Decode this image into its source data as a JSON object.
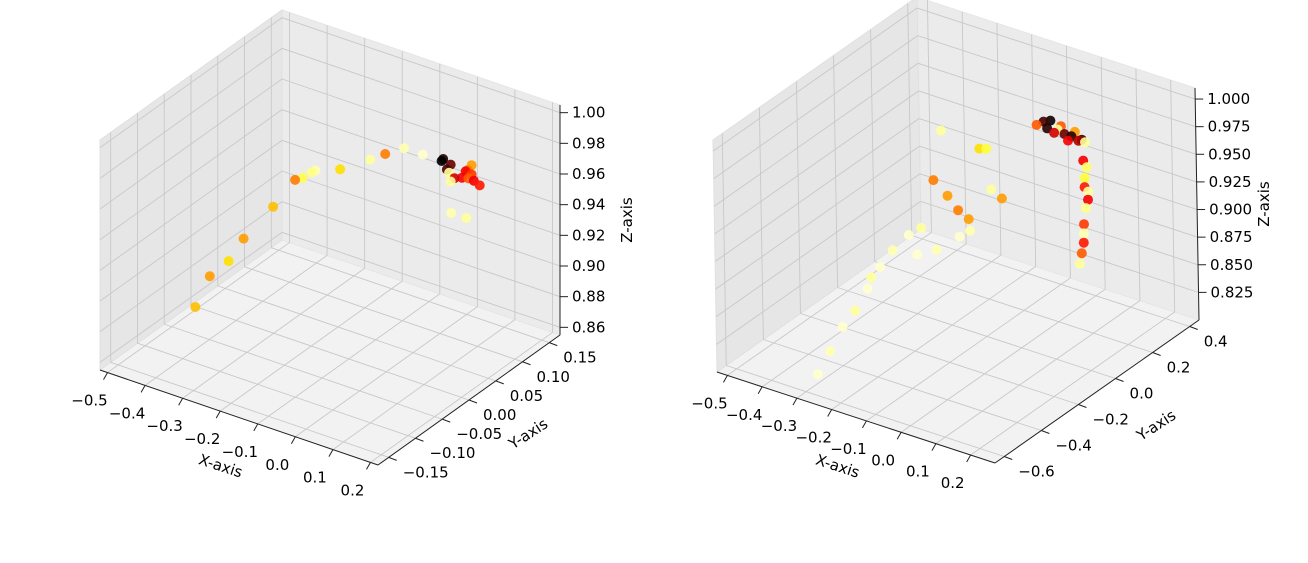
{
  "figure": {
    "background": "#ffffff",
    "pane_color": "#f2f2f2",
    "grid_color": "#b0b0b0"
  },
  "chart_data": [
    {
      "type": "scatter3d",
      "title": "",
      "xlabel": "X-axis",
      "ylabel": "Y-axis",
      "zlabel": "Z-axis",
      "xlim": [
        -0.52,
        0.22
      ],
      "ylim": [
        -0.17,
        0.17
      ],
      "zlim": [
        0.855,
        1.005
      ],
      "xticks": [
        -0.5,
        -0.4,
        -0.3,
        -0.2,
        -0.1,
        0.0,
        0.1,
        0.2
      ],
      "xtick_labels": [
        "−0.5",
        "−0.4",
        "−0.3",
        "−0.2",
        "−0.1",
        "0.0",
        "0.1",
        "0.2"
      ],
      "yticks": [
        -0.15,
        -0.1,
        -0.05,
        0.0,
        0.05,
        0.1,
        0.15
      ],
      "ytick_labels": [
        "−0.15",
        "−0.10",
        "−0.05",
        "0.00",
        "0.05",
        "0.10",
        "0.15"
      ],
      "zticks": [
        0.86,
        0.88,
        0.9,
        0.92,
        0.94,
        0.96,
        0.98,
        1.0
      ],
      "ztick_labels": [
        "0.86",
        "0.88",
        "0.90",
        "0.92",
        "0.94",
        "0.96",
        "0.98",
        "1.00"
      ],
      "grid": true,
      "colormap": "hot",
      "points": [
        {
          "x": -0.48,
          "y": -0.02,
          "z": 0.862,
          "c": 0.65
        },
        {
          "x": -0.47,
          "y": 0.0,
          "z": 0.878,
          "c": 0.6
        },
        {
          "x": -0.42,
          "y": 0.0,
          "z": 0.892,
          "c": 0.7
        },
        {
          "x": -0.38,
          "y": 0.0,
          "z": 0.91,
          "c": 0.6
        },
        {
          "x": -0.33,
          "y": 0.02,
          "z": 0.93,
          "c": 0.65
        },
        {
          "x": -0.3,
          "y": 0.04,
          "z": 0.945,
          "c": 0.55
        },
        {
          "x": -0.28,
          "y": 0.04,
          "z": 0.948,
          "c": 0.82
        },
        {
          "x": -0.27,
          "y": 0.05,
          "z": 0.95,
          "c": 0.88
        },
        {
          "x": -0.26,
          "y": 0.05,
          "z": 0.952,
          "c": 0.92
        },
        {
          "x": -0.18,
          "y": 0.04,
          "z": 0.962,
          "c": 0.7
        },
        {
          "x": -0.1,
          "y": 0.04,
          "z": 0.975,
          "c": 0.9
        },
        {
          "x": -0.06,
          "y": 0.04,
          "z": 0.982,
          "c": 0.55
        },
        {
          "x": -0.01,
          "y": 0.04,
          "z": 0.99,
          "c": 0.92
        },
        {
          "x": 0.04,
          "y": 0.04,
          "z": 0.99,
          "c": 0.95
        },
        {
          "x": 0.08,
          "y": 0.05,
          "z": 0.988,
          "c": 0.05
        },
        {
          "x": 0.09,
          "y": 0.05,
          "z": 0.982,
          "c": 0.1
        },
        {
          "x": 0.09,
          "y": 0.04,
          "z": 0.99,
          "c": 0.0
        },
        {
          "x": 0.1,
          "y": 0.05,
          "z": 0.986,
          "c": 0.15
        },
        {
          "x": 0.11,
          "y": 0.04,
          "z": 0.984,
          "c": 0.9
        },
        {
          "x": 0.1,
          "y": 0.05,
          "z": 0.975,
          "c": 0.9
        },
        {
          "x": 0.11,
          "y": 0.05,
          "z": 0.978,
          "c": 0.3
        },
        {
          "x": 0.13,
          "y": 0.05,
          "z": 0.98,
          "c": 0.35
        },
        {
          "x": 0.14,
          "y": 0.05,
          "z": 0.985,
          "c": 0.35
        },
        {
          "x": 0.16,
          "y": 0.04,
          "z": 0.99,
          "c": 0.55
        },
        {
          "x": 0.17,
          "y": 0.04,
          "z": 0.994,
          "c": 0.6
        },
        {
          "x": 0.17,
          "y": 0.04,
          "z": 0.988,
          "c": 0.45
        },
        {
          "x": 0.19,
          "y": 0.03,
          "z": 0.988,
          "c": 0.35
        },
        {
          "x": 0.19,
          "y": 0.02,
          "z": 0.992,
          "c": 0.5
        },
        {
          "x": 0.22,
          "y": 0.02,
          "z": 0.99,
          "c": 0.4
        },
        {
          "x": 0.13,
          "y": 0.03,
          "z": 0.962,
          "c": 0.92
        },
        {
          "x": 0.17,
          "y": 0.03,
          "z": 0.962,
          "c": 0.9
        }
      ]
    },
    {
      "type": "scatter3d",
      "title": "",
      "xlabel": "X-axis",
      "ylabel": "Y-axis",
      "zlabel": "Z-axis",
      "xlim": [
        -0.53,
        0.27
      ],
      "ylim": [
        -0.65,
        0.45
      ],
      "zlim": [
        0.8,
        1.01
      ],
      "xticks": [
        -0.5,
        -0.4,
        -0.3,
        -0.2,
        -0.1,
        0.0,
        0.1,
        0.2
      ],
      "xtick_labels": [
        "−0.5",
        "−0.4",
        "−0.3",
        "−0.2",
        "−0.1",
        "0.0",
        "0.1",
        "0.2"
      ],
      "yticks": [
        -0.6,
        -0.4,
        -0.2,
        0.0,
        0.2,
        0.4
      ],
      "ytick_labels": [
        "−0.6",
        "−0.4",
        "−0.2",
        "0.0",
        "0.2",
        "0.4"
      ],
      "zticks": [
        0.825,
        0.85,
        0.875,
        0.9,
        0.925,
        0.95,
        0.975,
        1.0
      ],
      "ztick_labels": [
        "0.825",
        "0.850",
        "0.875",
        "0.900",
        "0.925",
        "0.950",
        "0.975",
        "1.000"
      ],
      "grid": true,
      "colormap": "hot",
      "points": [
        {
          "x": -0.32,
          "y": -0.5,
          "z": 0.802,
          "c": 0.95
        },
        {
          "x": -0.31,
          "y": -0.45,
          "z": 0.818,
          "c": 0.92
        },
        {
          "x": -0.3,
          "y": -0.4,
          "z": 0.835,
          "c": 0.95
        },
        {
          "x": -0.29,
          "y": -0.35,
          "z": 0.845,
          "c": 0.9
        },
        {
          "x": -0.28,
          "y": -0.3,
          "z": 0.86,
          "c": 0.95
        },
        {
          "x": -0.28,
          "y": -0.28,
          "z": 0.868,
          "c": 0.9
        },
        {
          "x": -0.27,
          "y": -0.25,
          "z": 0.875,
          "c": 0.95
        },
        {
          "x": -0.26,
          "y": -0.2,
          "z": 0.885,
          "c": 0.92
        },
        {
          "x": -0.24,
          "y": -0.15,
          "z": 0.895,
          "c": 0.95
        },
        {
          "x": -0.22,
          "y": -0.12,
          "z": 0.9,
          "c": 0.9
        },
        {
          "x": -0.2,
          "y": -0.18,
          "z": 0.885,
          "c": 0.95
        },
        {
          "x": -0.16,
          "y": -0.15,
          "z": 0.89,
          "c": 0.92
        },
        {
          "x": -0.12,
          "y": -0.1,
          "z": 0.9,
          "c": 0.95
        },
        {
          "x": -0.22,
          "y": -0.05,
          "z": 0.935,
          "c": 0.55
        },
        {
          "x": -0.18,
          "y": -0.05,
          "z": 0.925,
          "c": 0.6
        },
        {
          "x": -0.15,
          "y": -0.05,
          "z": 0.915,
          "c": 0.55
        },
        {
          "x": -0.12,
          "y": -0.05,
          "z": 0.91,
          "c": 0.6
        },
        {
          "x": -0.1,
          "y": -0.08,
          "z": 0.905,
          "c": 0.92
        },
        {
          "x": -0.08,
          "y": 0.0,
          "z": 0.935,
          "c": 0.9
        },
        {
          "x": -0.05,
          "y": 0.0,
          "z": 0.93,
          "c": 0.6
        },
        {
          "x": -0.14,
          "y": 0.05,
          "z": 0.96,
          "c": 0.7
        },
        {
          "x": -0.12,
          "y": 0.05,
          "z": 0.962,
          "c": 0.8
        },
        {
          "x": -0.25,
          "y": 0.05,
          "z": 0.965,
          "c": 0.9
        },
        {
          "x": 0.0,
          "y": 0.1,
          "z": 0.99,
          "c": 0.5
        },
        {
          "x": 0.02,
          "y": 0.1,
          "z": 0.995,
          "c": 0.1
        },
        {
          "x": 0.03,
          "y": 0.1,
          "z": 0.99,
          "c": 0.05
        },
        {
          "x": 0.04,
          "y": 0.1,
          "z": 0.998,
          "c": 0.02
        },
        {
          "x": 0.05,
          "y": 0.1,
          "z": 0.988,
          "c": 0.3
        },
        {
          "x": 0.06,
          "y": 0.1,
          "z": 0.992,
          "c": 0.9
        },
        {
          "x": 0.07,
          "y": 0.1,
          "z": 0.996,
          "c": 0.5
        },
        {
          "x": 0.08,
          "y": 0.1,
          "z": 0.99,
          "c": 0.15
        },
        {
          "x": 0.09,
          "y": 0.1,
          "z": 0.985,
          "c": 0.35
        },
        {
          "x": 0.1,
          "y": 0.1,
          "z": 0.99,
          "c": 0.05
        },
        {
          "x": 0.11,
          "y": 0.1,
          "z": 0.995,
          "c": 0.6
        },
        {
          "x": 0.12,
          "y": 0.1,
          "z": 0.988,
          "c": 0.25
        },
        {
          "x": 0.13,
          "y": 0.1,
          "z": 0.99,
          "c": 0.1
        },
        {
          "x": 0.15,
          "y": 0.08,
          "z": 0.992,
          "c": 0.9
        },
        {
          "x": 0.16,
          "y": 0.05,
          "z": 0.98,
          "c": 0.35
        },
        {
          "x": 0.17,
          "y": 0.05,
          "z": 0.975,
          "c": 0.85
        },
        {
          "x": 0.18,
          "y": 0.02,
          "z": 0.97,
          "c": 0.8
        },
        {
          "x": 0.19,
          "y": 0.0,
          "z": 0.965,
          "c": 0.4
        },
        {
          "x": 0.2,
          "y": 0.0,
          "z": 0.962,
          "c": 0.9
        },
        {
          "x": 0.21,
          "y": -0.02,
          "z": 0.958,
          "c": 0.35
        },
        {
          "x": 0.22,
          "y": -0.05,
          "z": 0.955,
          "c": 0.88
        },
        {
          "x": 0.23,
          "y": -0.08,
          "z": 0.945,
          "c": 0.45
        },
        {
          "x": 0.24,
          "y": -0.1,
          "z": 0.94,
          "c": 0.92
        },
        {
          "x": 0.25,
          "y": -0.12,
          "z": 0.935,
          "c": 0.4
        },
        {
          "x": 0.26,
          "y": -0.15,
          "z": 0.93,
          "c": 0.5
        },
        {
          "x": 0.27,
          "y": -0.18,
          "z": 0.925,
          "c": 0.9
        }
      ]
    }
  ]
}
